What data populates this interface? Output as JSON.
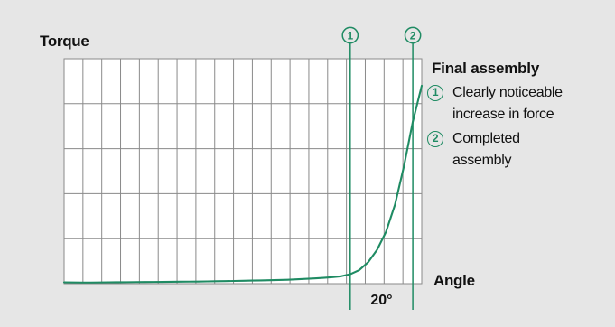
{
  "chart_data": {
    "type": "line",
    "title": "",
    "xlabel": "Angle",
    "ylabel": "Torque",
    "grid": true,
    "legend_placement": "right",
    "colors": {
      "background": "#e6e6e6",
      "plot_background": "#ffffff",
      "grid": "#8a8a8a",
      "curve": "#1f8b63",
      "marker": "#1f8b63"
    },
    "x_label": "Angle",
    "y_label": "Torque",
    "x": [
      0,
      0.5,
      1,
      1.5,
      2,
      2.5,
      3,
      3.5,
      4,
      4.5,
      5,
      5.5,
      6,
      6.5,
      7,
      7.5,
      8,
      8.5,
      9,
      9.5,
      10,
      10.5,
      11,
      11.5,
      12,
      12.5,
      13,
      13.5,
      14,
      14.5,
      15,
      15.5,
      16,
      16.5,
      17,
      17.5,
      18,
      18.5,
      19,
      19.5,
      20
    ],
    "series": [
      {
        "values": [
          0.6,
          0.55,
          0.5,
          0.5,
          0.55,
          0.6,
          0.62,
          0.65,
          0.7,
          0.72,
          0.75,
          0.78,
          0.82,
          0.86,
          0.9,
          0.94,
          1.0,
          1.06,
          1.12,
          1.2,
          1.28,
          1.36,
          1.44,
          1.52,
          1.62,
          1.75,
          1.92,
          2.12,
          2.35,
          2.6,
          2.9,
          3.3,
          4.2,
          6.0,
          9.5,
          15.0,
          23.0,
          35.0,
          52.0,
          72.0,
          88.0
        ]
      }
    ],
    "xlim": [
      0,
      20
    ],
    "ylim": [
      0,
      100
    ],
    "annotations": [
      {
        "marker": "1",
        "x": 16.0,
        "text": "Clearly noticeable increase in force"
      },
      {
        "marker": "2",
        "x": 19.5,
        "text": "Completed assembly"
      }
    ],
    "angle_span_label": "20°"
  },
  "labels": {
    "torque": "Torque",
    "angle": "Angle",
    "legend_title": "Final assembly",
    "legend_items": [
      {
        "marker": "1",
        "text": "Clearly noticeable\nincrease in force"
      },
      {
        "marker": "2",
        "text": "Completed\nassembly"
      }
    ],
    "angle_span": "20°"
  }
}
